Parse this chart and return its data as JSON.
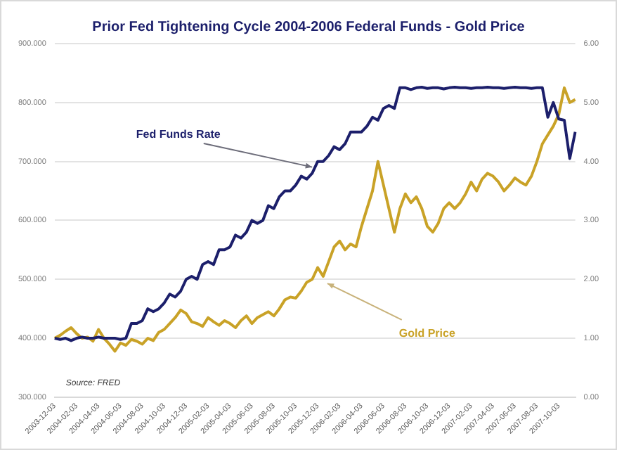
{
  "chart_data": {
    "type": "line",
    "title": "Prior Fed Tightening Cycle 2004-2006 Federal Funds - Gold Price",
    "categories": [
      "2003-12-03",
      null,
      null,
      null,
      "2004-02-03",
      null,
      null,
      null,
      "2004-04-03",
      null,
      null,
      null,
      "2004-06-03",
      null,
      null,
      null,
      "2004-08-03",
      null,
      null,
      null,
      "2004-10-03",
      null,
      null,
      null,
      "2004-12-03",
      null,
      null,
      null,
      "2005-02-03",
      null,
      null,
      null,
      "2005-04-03",
      null,
      null,
      null,
      "2005-06-03",
      null,
      null,
      null,
      "2005-08-03",
      null,
      null,
      null,
      "2005-10-03",
      null,
      null,
      null,
      "2005-12-03",
      null,
      null,
      null,
      "2006-02-03",
      null,
      null,
      null,
      "2006-04-03",
      null,
      null,
      null,
      "2006-06-03",
      null,
      null,
      null,
      "2006-08-03",
      null,
      null,
      null,
      "2006-10-03",
      null,
      null,
      null,
      "2006-12-03",
      null,
      null,
      null,
      "2007-02-03",
      null,
      null,
      null,
      "2007-04-03",
      null,
      null,
      null,
      "2007-06-03",
      null,
      null,
      null,
      "2007-08-03",
      null,
      null,
      null,
      "2007-10-03",
      null,
      null,
      null
    ],
    "series": [
      {
        "name": "Fed Funds Rate",
        "color": "#1c1f6b",
        "axis": "y2",
        "values": [
          1.0,
          0.98,
          1.0,
          0.96,
          1.0,
          1.02,
          1.0,
          1.0,
          1.02,
          1.0,
          1.0,
          1.0,
          0.98,
          1.0,
          1.25,
          1.25,
          1.3,
          1.5,
          1.45,
          1.5,
          1.6,
          1.75,
          1.7,
          1.8,
          2.0,
          2.05,
          2.0,
          2.25,
          2.3,
          2.25,
          2.5,
          2.5,
          2.55,
          2.75,
          2.7,
          2.8,
          3.0,
          2.95,
          3.0,
          3.25,
          3.2,
          3.4,
          3.5,
          3.5,
          3.6,
          3.75,
          3.7,
          3.8,
          4.0,
          4.0,
          4.1,
          4.25,
          4.2,
          4.3,
          4.5,
          4.5,
          4.5,
          4.6,
          4.75,
          4.7,
          4.9,
          4.95,
          4.9,
          5.25,
          5.25,
          5.22,
          5.25,
          5.26,
          5.24,
          5.25,
          5.25,
          5.23,
          5.25,
          5.26,
          5.25,
          5.25,
          5.24,
          5.25,
          5.25,
          5.26,
          5.25,
          5.25,
          5.24,
          5.25,
          5.26,
          5.25,
          5.25,
          5.24,
          5.25,
          5.25,
          4.75,
          5.0,
          4.72,
          4.7,
          4.05,
          4.5
        ]
      },
      {
        "name": "Gold Price",
        "color": "#c9a227",
        "values": [
          400,
          405,
          412,
          418,
          408,
          400,
          402,
          395,
          415,
          400,
          390,
          378,
          392,
          388,
          398,
          395,
          390,
          400,
          396,
          410,
          415,
          425,
          435,
          448,
          442,
          428,
          425,
          420,
          435,
          428,
          422,
          430,
          425,
          418,
          430,
          438,
          425,
          435,
          440,
          445,
          438,
          450,
          465,
          470,
          468,
          480,
          495,
          500,
          520,
          505,
          530,
          555,
          565,
          550,
          560,
          555,
          590,
          620,
          650,
          700,
          660,
          620,
          580,
          620,
          645,
          630,
          640,
          620,
          590,
          580,
          595,
          620,
          630,
          620,
          630,
          645,
          665,
          650,
          670,
          680,
          675,
          665,
          650,
          660,
          672,
          665,
          660,
          675,
          700,
          730,
          745,
          760,
          780,
          825,
          800,
          805
        ]
      }
    ],
    "ylim": [
      300,
      900
    ],
    "yticks": [
      {
        "value": 300,
        "label": "300.000"
      },
      {
        "value": 400,
        "label": "400.000"
      },
      {
        "value": 500,
        "label": "500.000"
      },
      {
        "value": 600,
        "label": "600.000"
      },
      {
        "value": 700,
        "label": "700.000"
      },
      {
        "value": 800,
        "label": "800.000"
      },
      {
        "value": 900,
        "label": "900.000"
      }
    ],
    "y2lim": [
      0,
      6
    ],
    "y2ticks": [
      {
        "value": 0,
        "label": "0.00"
      },
      {
        "value": 1,
        "label": "1.00"
      },
      {
        "value": 2,
        "label": "2.00"
      },
      {
        "value": 3,
        "label": "3.00"
      },
      {
        "value": 4,
        "label": "4.00"
      },
      {
        "value": 5,
        "label": "5.00"
      },
      {
        "value": 6,
        "label": "6.00"
      }
    ],
    "grid": "y",
    "legend": false,
    "marker": "none",
    "line_style": "solid",
    "annotations": [
      "Source: FRED"
    ]
  }
}
